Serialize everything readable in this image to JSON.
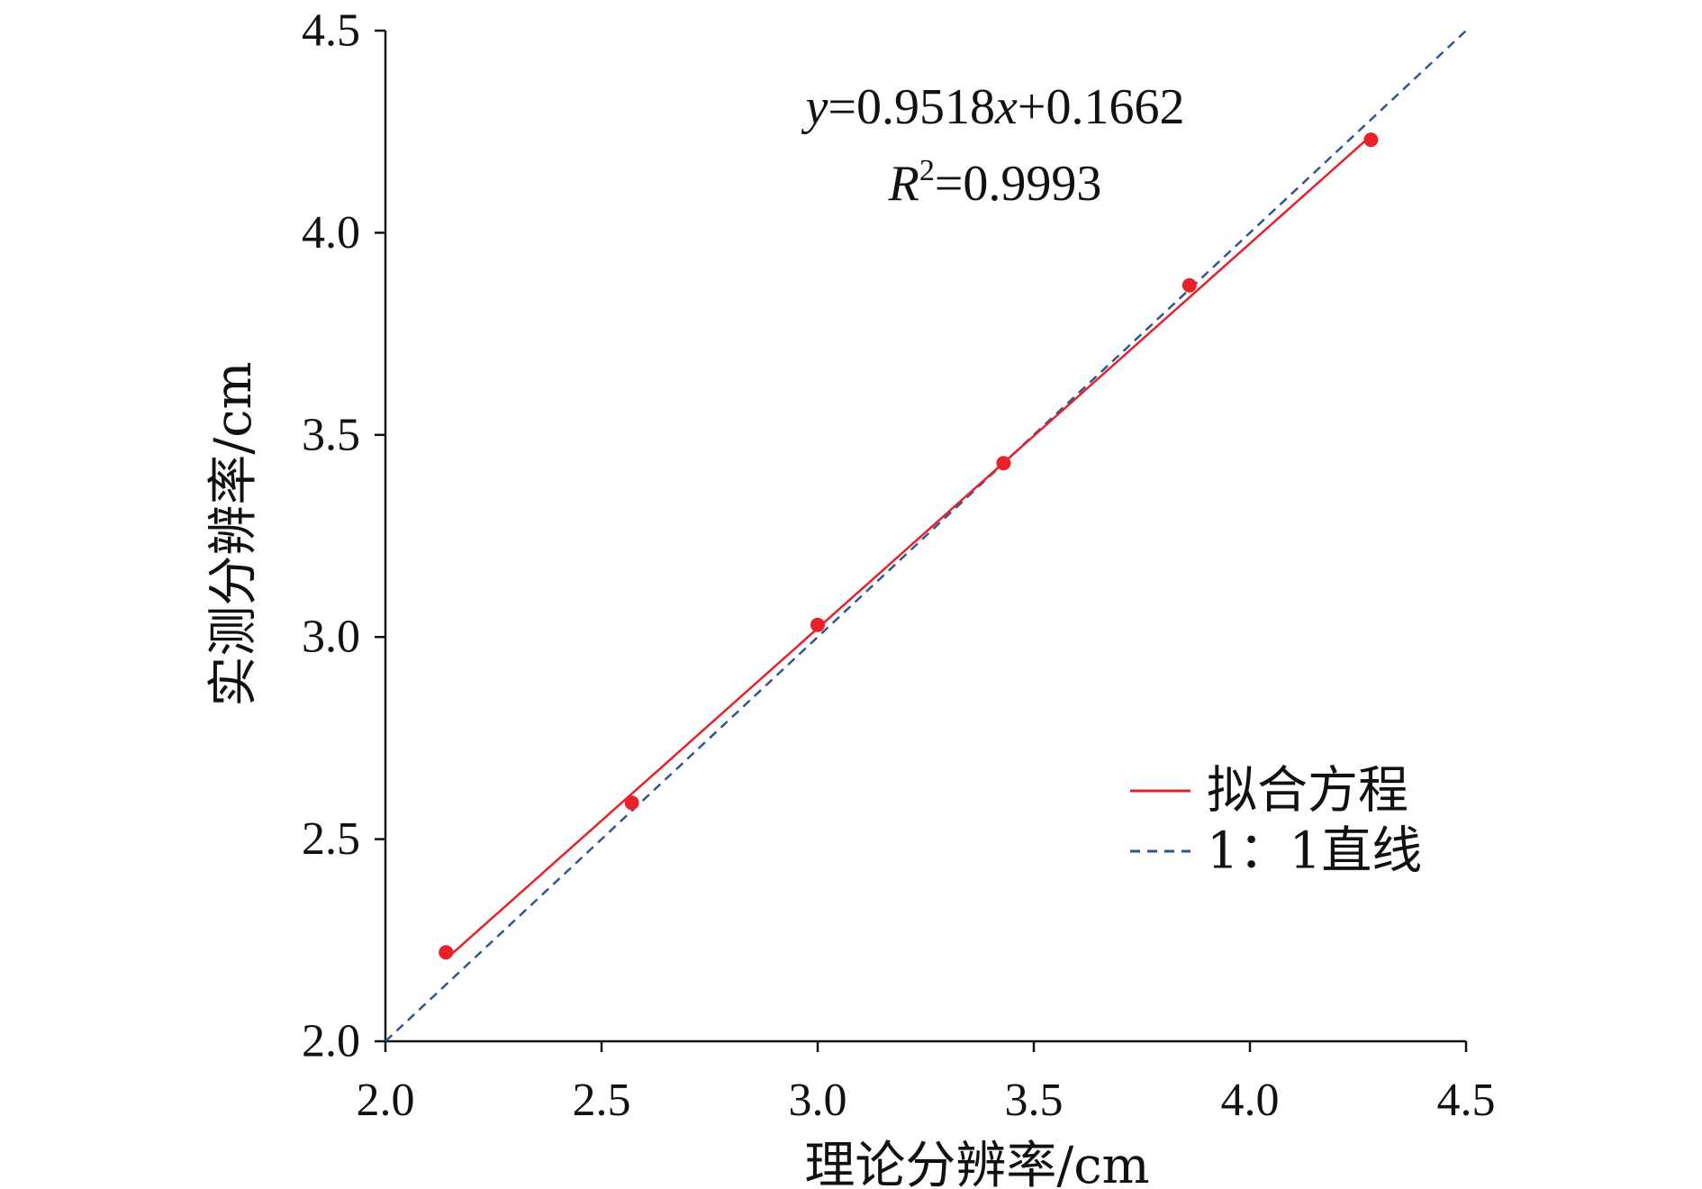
{
  "chart_data": {
    "type": "scatter",
    "xlabel": "理论分辨率/cm",
    "ylabel": "实测分辨率/cm",
    "xlim": [
      2.0,
      4.5
    ],
    "ylim": [
      2.0,
      4.5
    ],
    "xticks": [
      "2.0",
      "2.5",
      "3.0",
      "3.5",
      "4.0",
      "4.5"
    ],
    "yticks": [
      "2.0",
      "2.5",
      "3.0",
      "3.5",
      "4.0",
      "4.5"
    ],
    "grid": false,
    "legend_position": "right",
    "points": [
      {
        "x": 2.14,
        "y": 2.22
      },
      {
        "x": 2.57,
        "y": 2.59
      },
      {
        "x": 3.0,
        "y": 3.03
      },
      {
        "x": 3.43,
        "y": 3.43
      },
      {
        "x": 3.86,
        "y": 3.87
      },
      {
        "x": 4.28,
        "y": 4.23
      }
    ],
    "marker_color": "#e8202a",
    "series": [
      {
        "name": "拟合方程",
        "type": "line",
        "slope": 0.9518,
        "intercept": 0.1662,
        "x_range": [
          2.14,
          4.28
        ],
        "color": "#e8202a",
        "dash": "solid"
      },
      {
        "name": "1：1直线",
        "type": "line",
        "slope": 1,
        "intercept": 0,
        "x_range": [
          2.0,
          4.5
        ],
        "color": "#2f5597",
        "dash": "dashed"
      }
    ],
    "annotation": {
      "y_var": "y",
      "eq_mid": "=0.9518",
      "x_var": "x",
      "eq_tail": "+0.1662",
      "r_var": "R",
      "r_sup": "2",
      "r_tail": "=0.9993"
    }
  }
}
